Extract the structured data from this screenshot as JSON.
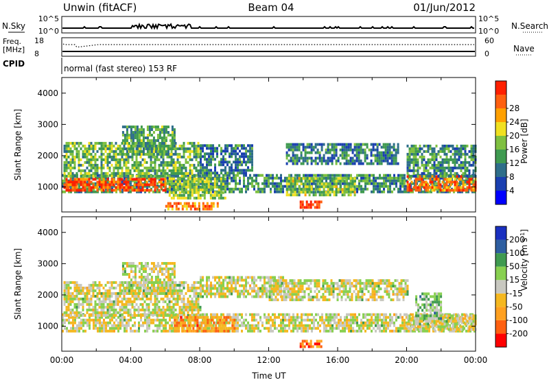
{
  "header": {
    "title_left": "Unwin (fitACF)",
    "title_center": "Beam 04",
    "title_right": "01/Jun/2012"
  },
  "top_panels": {
    "nsky_label": "N.Sky",
    "nsky_ticks": [
      "10^5",
      "10^0"
    ],
    "nsearch_label": "N.Search",
    "nsearch_ticks": [
      "10^5",
      "10^0"
    ],
    "freq_label": "Freq.",
    "freq_unit": "[MHz]",
    "freq_ticks": [
      "18",
      "8"
    ],
    "nave_label": "Nave",
    "nave_ticks": [
      "60",
      "0"
    ],
    "cpid_label": "CPID",
    "cpid_text": "normal (fast stereo) 153 RF"
  },
  "colors": {
    "power": [
      "#0000ff",
      "#1a3fb0",
      "#2e6e8a",
      "#3f9a50",
      "#7fc040",
      "#f0e020",
      "#ffa000",
      "#ff6010",
      "#ff2000"
    ],
    "velocity": [
      "#ff0000",
      "#ff6010",
      "#ffa020",
      "#f5b820",
      "#c8c8c0",
      "#88d050",
      "#3f9a50",
      "#2e5ea0",
      "#1a30c0"
    ]
  },
  "chart_data": [
    {
      "type": "heatmap",
      "name": "power",
      "ylabel": "Slant Range [km]",
      "yticks": [
        "1000",
        "2000",
        "3000",
        "4000"
      ],
      "ylim": [
        200,
        4500
      ],
      "xlim_hours": [
        0,
        24
      ],
      "colorbar_label": "Power [dB]",
      "colorbar_ticks": [
        "4",
        "8",
        "12",
        "16",
        "20",
        "24",
        "28"
      ],
      "regions": [
        {
          "t0": 0.0,
          "t1": 24.0,
          "r0": 800,
          "r1": 1400,
          "level": 0.35
        },
        {
          "t0": 0.1,
          "t1": 6.0,
          "r0": 850,
          "r1": 1250,
          "level": 0.85
        },
        {
          "t0": 0.1,
          "t1": 8.0,
          "r0": 1300,
          "r1": 2400,
          "level": 0.45
        },
        {
          "t0": 3.5,
          "t1": 6.5,
          "r0": 2000,
          "r1": 2900,
          "level": 0.4
        },
        {
          "t0": 6.2,
          "t1": 9.5,
          "r0": 600,
          "r1": 1300,
          "level": 0.5
        },
        {
          "t0": 6.0,
          "t1": 9.0,
          "r0": 250,
          "r1": 450,
          "level": 0.8
        },
        {
          "t0": 8.0,
          "t1": 11.0,
          "r0": 1400,
          "r1": 2300,
          "level": 0.3
        },
        {
          "t0": 13.0,
          "t1": 17.0,
          "r0": 700,
          "r1": 1300,
          "level": 0.5
        },
        {
          "t0": 13.8,
          "t1": 15.0,
          "r0": 300,
          "r1": 550,
          "level": 0.95
        },
        {
          "t0": 13.0,
          "t1": 19.5,
          "r0": 1700,
          "r1": 2400,
          "level": 0.3
        },
        {
          "t0": 20.0,
          "t1": 24.0,
          "r0": 850,
          "r1": 1300,
          "level": 0.8
        },
        {
          "t0": 20.0,
          "t1": 24.0,
          "r0": 1300,
          "r1": 2300,
          "level": 0.35
        }
      ]
    },
    {
      "type": "heatmap",
      "name": "velocity",
      "ylabel": "Slant Range [km]",
      "xlabel": "Time UT",
      "yticks": [
        "1000",
        "2000",
        "3000",
        "4000"
      ],
      "ylim": [
        200,
        4500
      ],
      "xlim_hours": [
        0,
        24
      ],
      "xticks": [
        "00:00",
        "04:00",
        "08:00",
        "12:00",
        "16:00",
        "20:00",
        "00:00"
      ],
      "colorbar_label": "Velocity [m s^-1]",
      "colorbar_ticks": [
        "-200",
        "-100",
        "-50",
        "-15",
        "15",
        "50",
        "100",
        "200"
      ],
      "regions": [
        {
          "t0": 0.0,
          "t1": 24.0,
          "r0": 800,
          "r1": 1400,
          "level": 0.5
        },
        {
          "t0": 0.1,
          "t1": 8.0,
          "r0": 1300,
          "r1": 2400,
          "level": 0.5
        },
        {
          "t0": 3.5,
          "t1": 6.5,
          "r0": 2000,
          "r1": 3000,
          "level": 0.5
        },
        {
          "t0": 6.5,
          "t1": 10.0,
          "r0": 800,
          "r1": 1300,
          "level": 0.28
        },
        {
          "t0": 8.0,
          "t1": 13.0,
          "r0": 1900,
          "r1": 2600,
          "level": 0.5
        },
        {
          "t0": 13.8,
          "t1": 15.0,
          "r0": 300,
          "r1": 550,
          "level": 0.2
        },
        {
          "t0": 12.0,
          "t1": 20.0,
          "r0": 1800,
          "r1": 2500,
          "level": 0.5
        },
        {
          "t0": 20.0,
          "t1": 24.0,
          "r0": 850,
          "r1": 1350,
          "level": 0.5
        },
        {
          "t0": 20.5,
          "t1": 22.0,
          "r0": 1200,
          "r1": 2000,
          "level": 0.62
        }
      ]
    }
  ]
}
